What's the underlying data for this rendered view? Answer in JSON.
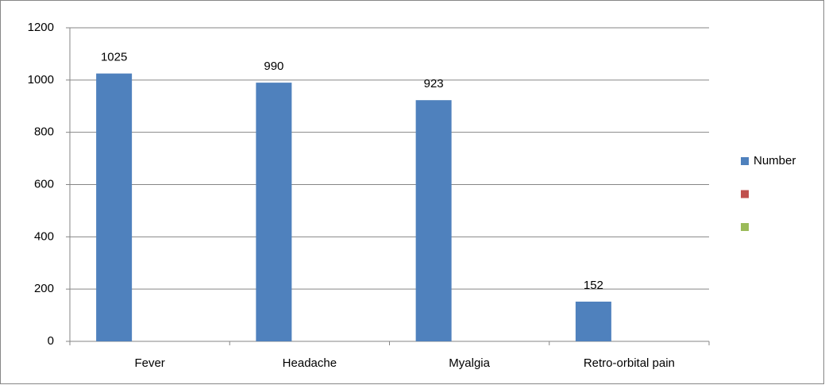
{
  "chart_data": {
    "type": "bar",
    "categories": [
      "Fever",
      "Headache",
      "Myalgia",
      "Retro-orbital pain"
    ],
    "series": [
      {
        "name": "Number",
        "color": "#4f81bd",
        "values": [
          1025,
          990,
          923,
          152
        ]
      },
      {
        "name": null,
        "color": "#c0504d",
        "values": [
          null,
          null,
          null,
          null
        ]
      },
      {
        "name": null,
        "color": "#9bbb59",
        "values": [
          null,
          null,
          null,
          null
        ]
      }
    ],
    "ylim": [
      0,
      1200
    ],
    "yticks": [
      0,
      200,
      400,
      600,
      800,
      1000,
      1200
    ],
    "grid": true,
    "legend": "right"
  }
}
